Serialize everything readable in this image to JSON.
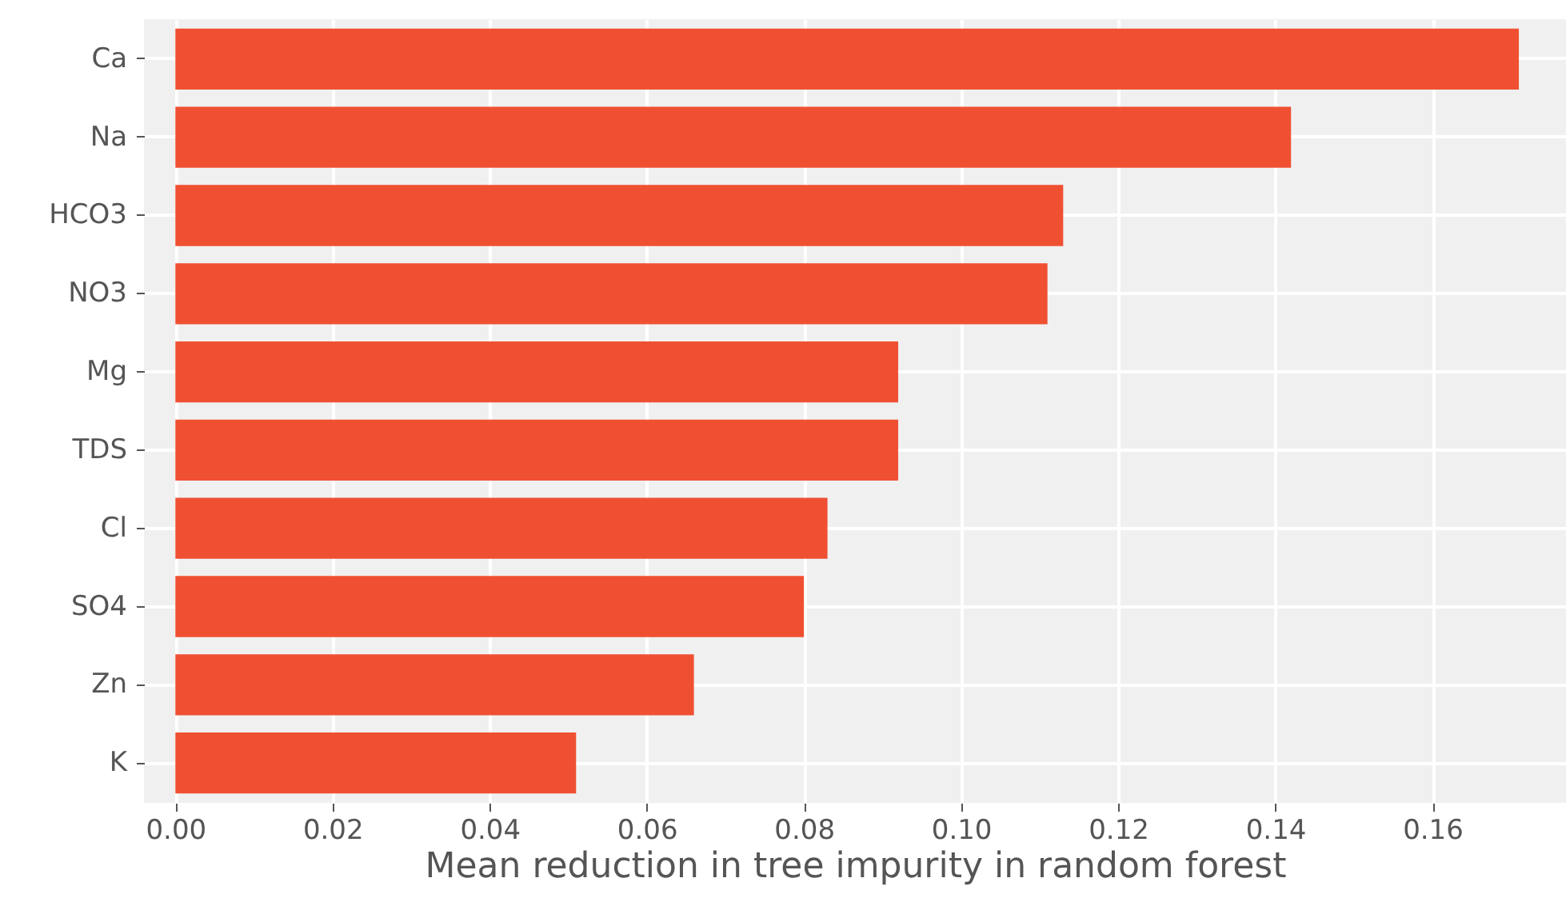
{
  "chart_data": {
    "type": "bar",
    "orientation": "horizontal",
    "xlabel": "Mean reduction in tree impurity in random forest",
    "categories": [
      "Ca",
      "Na",
      "HCO3",
      "NO3",
      "Mg",
      "TDS",
      "Cl",
      "SO4",
      "Zn",
      "K"
    ],
    "values": [
      0.171,
      0.142,
      0.113,
      0.111,
      0.092,
      0.092,
      0.083,
      0.08,
      0.066,
      0.051
    ],
    "color": "#f05032",
    "xlim": [
      -0.004,
      0.177
    ],
    "xticks": [
      {
        "value": 0,
        "label": "0.00"
      },
      {
        "value": 0.02,
        "label": "0.02"
      },
      {
        "value": 0.04,
        "label": "0.04"
      },
      {
        "value": 0.06,
        "label": "0.06"
      },
      {
        "value": 0.08,
        "label": "0.08"
      },
      {
        "value": 0.1,
        "label": "0.10"
      },
      {
        "value": 0.12,
        "label": "0.12"
      },
      {
        "value": 0.14,
        "label": "0.14"
      },
      {
        "value": 0.16,
        "label": "0.16"
      }
    ],
    "grid": true
  }
}
